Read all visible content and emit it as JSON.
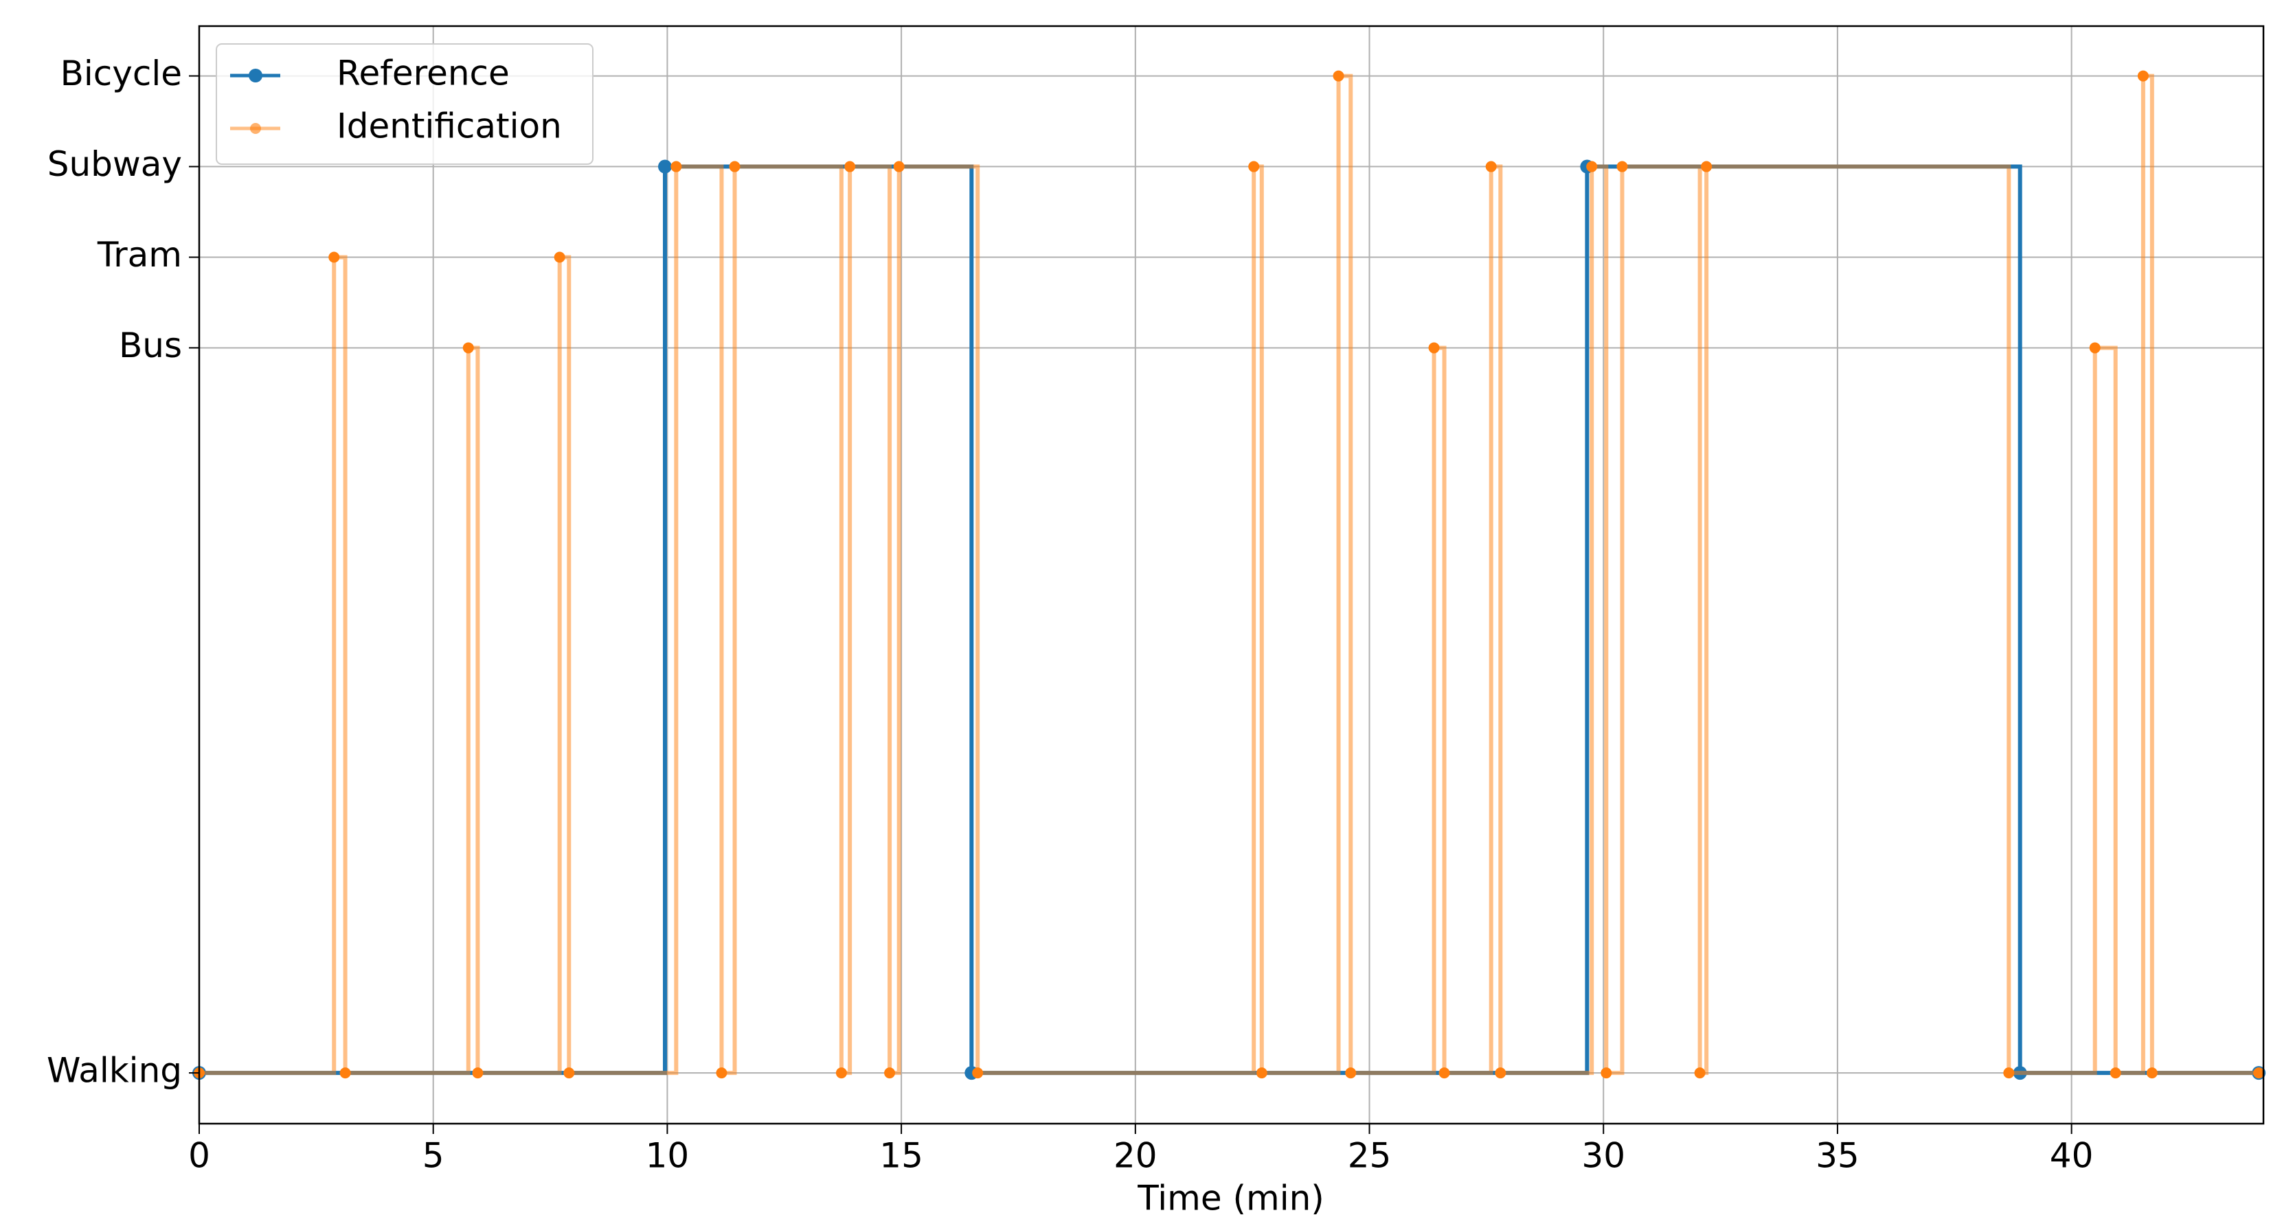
{
  "chart_data": {
    "type": "line",
    "drawstyle": "steps-post",
    "x_label": "Time (min)",
    "xlim": [
      0,
      44.1
    ],
    "xticks": [
      0,
      5,
      10,
      15,
      20,
      25,
      30,
      35,
      40
    ],
    "ylim": [
      -0.56,
      11.55
    ],
    "yticks": [
      {
        "value": 0,
        "label": "Walking"
      },
      {
        "value": 8,
        "label": "Bus"
      },
      {
        "value": 9,
        "label": "Tram"
      },
      {
        "value": 10,
        "label": "Subway"
      },
      {
        "value": 11,
        "label": "Bicycle"
      }
    ],
    "grid": true,
    "legend": "upper left",
    "series": [
      {
        "name": "Reference",
        "color": "#1f77b4",
        "opacity": 1,
        "x": [
          0,
          9.95,
          16.5,
          29.65,
          38.9,
          44
        ],
        "values": [
          0,
          10,
          0,
          10,
          0,
          0
        ]
      },
      {
        "name": "Identification",
        "color": "#ff7f0e",
        "opacity": 0.5,
        "x": [
          0,
          2.88,
          3.12,
          5.75,
          5.95,
          7.7,
          7.9,
          10.19,
          11.16,
          11.44,
          13.72,
          13.9,
          14.75,
          14.95,
          16.63,
          22.53,
          22.7,
          24.34,
          24.6,
          26.38,
          26.6,
          27.6,
          27.8,
          29.75,
          30.06,
          30.4,
          32.06,
          32.2,
          38.66,
          40.5,
          40.94,
          41.53,
          41.72,
          44
        ],
        "values": [
          0,
          9,
          0,
          8,
          0,
          9,
          0,
          10,
          0,
          10,
          0,
          10,
          0,
          10,
          0,
          10,
          0,
          11,
          0,
          8,
          0,
          10,
          0,
          10,
          0,
          10,
          0,
          10,
          0,
          8,
          0,
          11,
          0,
          0
        ]
      }
    ]
  }
}
